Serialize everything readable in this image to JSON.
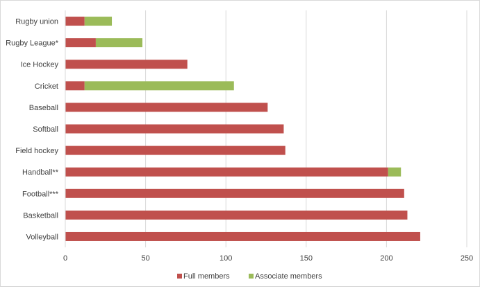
{
  "chart_data": {
    "type": "bar",
    "orientation": "horizontal",
    "stacked": true,
    "categories": [
      "Rugby union",
      "Rugby League*",
      "Ice Hockey",
      "Cricket",
      "Baseball",
      "Softball",
      "Field hockey",
      "Handball**",
      "Football***",
      "Basketball",
      "Volleyball"
    ],
    "series": [
      {
        "name": "Full members",
        "color": "#c0504d",
        "values": [
          12,
          19,
          76,
          12,
          126,
          136,
          137,
          201,
          211,
          213,
          221
        ]
      },
      {
        "name": "Associate members",
        "color": "#9bbb59",
        "values": [
          17,
          29,
          0,
          93,
          0,
          0,
          0,
          8,
          0,
          0,
          0
        ]
      }
    ],
    "xlim": [
      0,
      250
    ],
    "xticks": [
      0,
      50,
      100,
      150,
      200,
      250
    ],
    "grid": "vertical",
    "legend_position": "bottom"
  }
}
